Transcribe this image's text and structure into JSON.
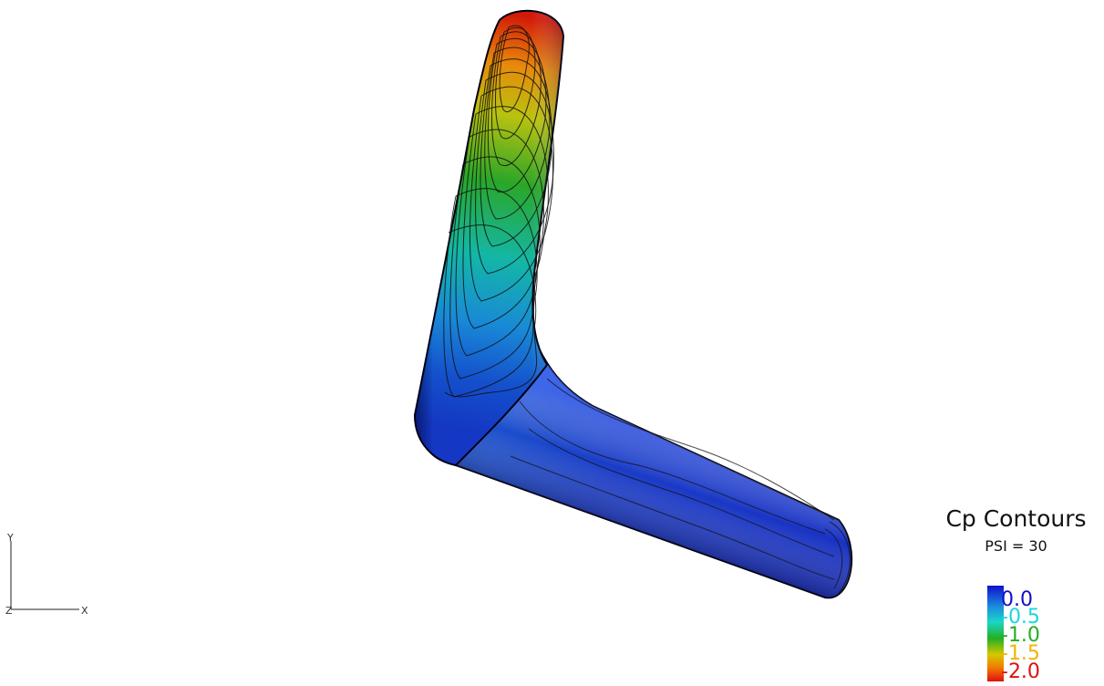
{
  "legend": {
    "title": "Cp Contours",
    "subtitle": "PSI = 30",
    "ticks": [
      {
        "label": "0.0",
        "color": "#1010cc"
      },
      {
        "label": "-0.5",
        "color": "#1ad6e0"
      },
      {
        "label": "-1.0",
        "color": "#22b022"
      },
      {
        "label": "-1.5",
        "color": "#f0b400"
      },
      {
        "label": "-2.0",
        "color": "#e01010"
      }
    ],
    "colormap": [
      "#1010cc",
      "#1ad6e0",
      "#22b022",
      "#f0b400",
      "#e01010"
    ]
  },
  "axes": {
    "y": "Y",
    "z": "Z",
    "x": "X"
  }
}
